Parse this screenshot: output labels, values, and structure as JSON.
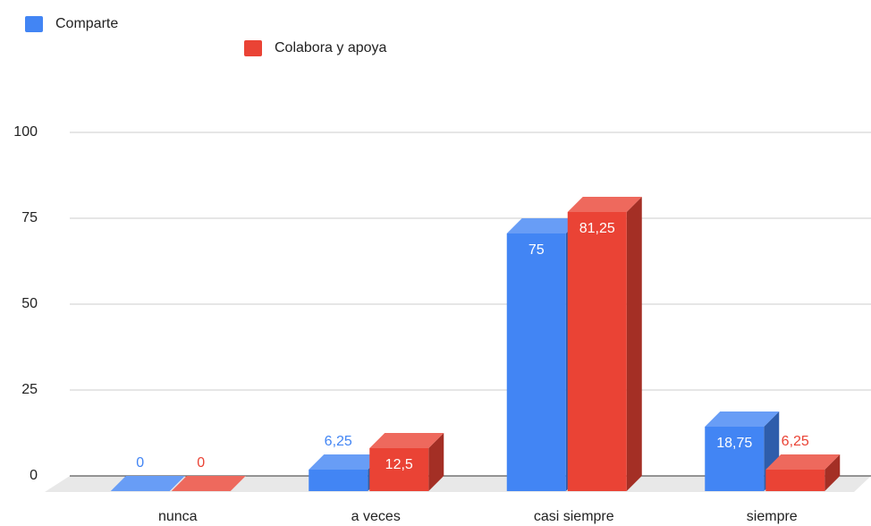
{
  "chart_data": {
    "type": "bar3d",
    "categories": [
      "nunca",
      "a veces",
      "casi siempre",
      "siempre"
    ],
    "series": [
      {
        "name": "Comparte",
        "color": "#4285f4",
        "values": [
          0,
          6.25,
          75,
          18.75
        ],
        "value_labels": [
          "0",
          "6,25",
          "75",
          "18,75"
        ]
      },
      {
        "name": "Colabora y apoya",
        "color": "#ea4335",
        "values": [
          0,
          12.5,
          81.25,
          6.25
        ],
        "value_labels": [
          "0",
          "12,5",
          "81,25",
          "6,25"
        ]
      }
    ],
    "ylim": [
      0,
      100
    ],
    "yticks": [
      0,
      25,
      50,
      75,
      100
    ],
    "grid": true,
    "legend": "top"
  }
}
